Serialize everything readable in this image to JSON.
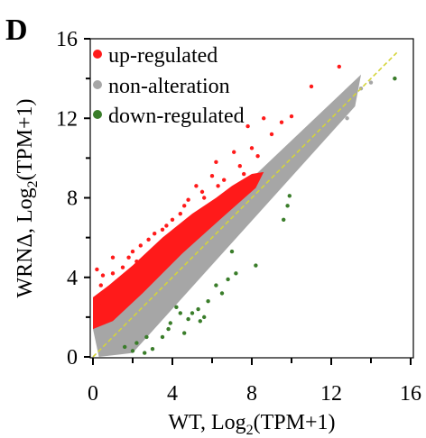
{
  "panel_label": "D",
  "chart_data": {
    "type": "scatter",
    "xlabel": "WT,  Log",
    "xlabel_sub": "2",
    "xlabel_suffix": "(TPM+1)",
    "ylabel": "WRNΔ,  Log",
    "ylabel_sub": "2",
    "ylabel_suffix": "(TPM+1)",
    "xlim": [
      0,
      16
    ],
    "ylim": [
      0,
      16
    ],
    "xticks": [
      0,
      4,
      8,
      12,
      16
    ],
    "yticks": [
      0,
      4,
      8,
      12,
      16
    ],
    "legend_position": "top-left",
    "diagonal_line": {
      "from": [
        0,
        0
      ],
      "to": [
        15.3,
        15.3
      ],
      "color": "#d4d43a",
      "style": "dashed"
    },
    "series": [
      {
        "name": "up-regulated",
        "color": "#ff1a1a",
        "points": [
          [
            12.4,
            14.6
          ],
          [
            11.0,
            13.6
          ],
          [
            8.6,
            12.0
          ],
          [
            7.8,
            11.6
          ],
          [
            8.0,
            10.5
          ],
          [
            7.1,
            10.3
          ],
          [
            8.3,
            10.1
          ],
          [
            6.2,
            9.8
          ],
          [
            5.5,
            8.3
          ],
          [
            5.2,
            8.6
          ],
          [
            6.0,
            9.1
          ],
          [
            4.6,
            7.6
          ],
          [
            4.4,
            7.2
          ],
          [
            3.7,
            6.6
          ],
          [
            3.1,
            6.2
          ],
          [
            2.4,
            5.6
          ],
          [
            1.8,
            5.0
          ],
          [
            1.0,
            4.2
          ],
          [
            0.5,
            4.1
          ],
          [
            0.2,
            4.4
          ],
          [
            0.6,
            3.2
          ],
          [
            1.2,
            3.8
          ],
          [
            2.2,
            4.8
          ],
          [
            0.3,
            2.6
          ],
          [
            0.4,
            3.6
          ],
          [
            1.5,
            4.5
          ],
          [
            1.0,
            5.0
          ],
          [
            2.8,
            5.9
          ],
          [
            3.5,
            6.4
          ],
          [
            4.8,
            7.9
          ],
          [
            5.6,
            8.0
          ],
          [
            6.3,
            8.6
          ],
          [
            7.4,
            9.6
          ],
          [
            9.0,
            11.2
          ],
          [
            10.0,
            12.1
          ],
          [
            9.5,
            11.8
          ],
          [
            7.6,
            9.2
          ],
          [
            6.6,
            8.9
          ],
          [
            4.0,
            6.9
          ],
          [
            2.0,
            5.3
          ]
        ]
      },
      {
        "name": "non-alteration",
        "color": "#a6a6a6",
        "points": [
          [
            15.2,
            14.0
          ],
          [
            13.5,
            13.5
          ],
          [
            12.5,
            12.7
          ],
          [
            12.0,
            12.2
          ],
          [
            11.5,
            11.5
          ],
          [
            11.0,
            10.6
          ],
          [
            13.0,
            12.8
          ],
          [
            14.0,
            13.8
          ],
          [
            10.5,
            10.3
          ],
          [
            12.2,
            11.8
          ],
          [
            12.8,
            12.0
          ],
          [
            11.8,
            11.2
          ],
          [
            10.8,
            11.0
          ],
          [
            9.8,
            9.5
          ],
          [
            9.2,
            9.6
          ],
          [
            10.2,
            10.0
          ],
          [
            11.3,
            10.9
          ],
          [
            8.8,
            8.4
          ]
        ]
      },
      {
        "name": "down-regulated",
        "color": "#3a7d2a",
        "points": [
          [
            15.2,
            14.0
          ],
          [
            9.8,
            7.6
          ],
          [
            9.9,
            8.1
          ],
          [
            9.6,
            6.9
          ],
          [
            8.2,
            4.6
          ],
          [
            6.2,
            3.6
          ],
          [
            6.5,
            3.2
          ],
          [
            5.3,
            2.4
          ],
          [
            5.0,
            2.2
          ],
          [
            5.4,
            1.8
          ],
          [
            4.8,
            1.9
          ],
          [
            3.8,
            1.4
          ],
          [
            3.5,
            1.0
          ],
          [
            2.2,
            0.7
          ],
          [
            2.7,
            1.0
          ],
          [
            4.4,
            2.2
          ],
          [
            4.2,
            2.5
          ],
          [
            3.0,
            0.4
          ],
          [
            2.0,
            0.3
          ],
          [
            5.8,
            2.8
          ],
          [
            7.2,
            4.2
          ],
          [
            6.8,
            3.9
          ],
          [
            1.6,
            0.5
          ],
          [
            3.9,
            1.7
          ],
          [
            4.6,
            1.2
          ],
          [
            5.6,
            2.0
          ],
          [
            2.6,
            0.2
          ],
          [
            7.0,
            5.3
          ]
        ]
      }
    ]
  }
}
